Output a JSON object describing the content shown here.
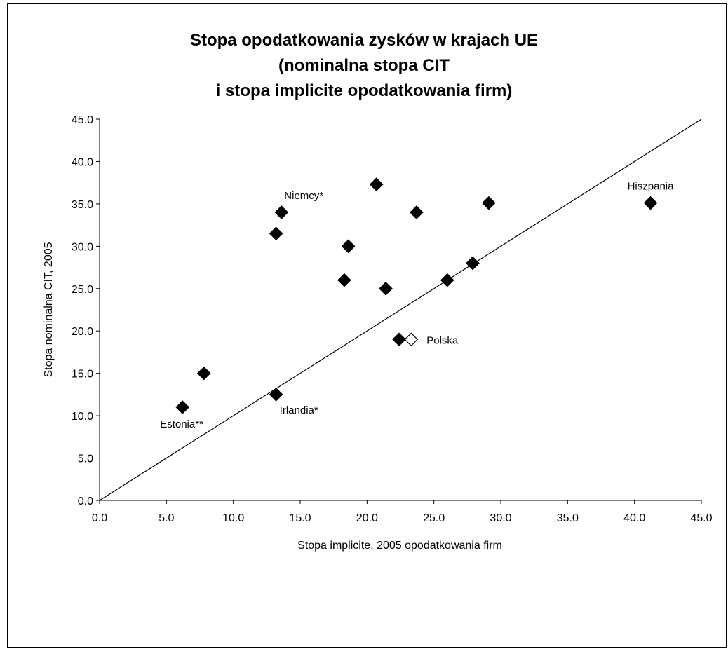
{
  "chart_data": {
    "type": "scatter",
    "title": [
      "Stopa opodatkowania zysków w krajach UE",
      "(nominalna stopa CIT",
      "i stopa implicite opodatkowania firm)"
    ],
    "xlabel": "Stopa implicite, 2005 opodatkowania firm",
    "ylabel": "Stopa nominalna CIT, 2005",
    "xlim": [
      0,
      45
    ],
    "ylim": [
      0,
      45
    ],
    "xticks": [
      "0.0",
      "5.0",
      "10.0",
      "15.0",
      "20.0",
      "25.0",
      "30.0",
      "35.0",
      "40.0",
      "45.0"
    ],
    "yticks": [
      "0.0",
      "5.0",
      "10.0",
      "15.0",
      "20.0",
      "25.0",
      "30.0",
      "35.0",
      "40.0",
      "45.0"
    ],
    "grid": false,
    "reference_line": {
      "from": [
        0,
        0
      ],
      "to": [
        45,
        45
      ]
    },
    "points": [
      {
        "x": 6.2,
        "y": 11.0,
        "label": "Estonia**",
        "label_pos": "below",
        "highlight": false
      },
      {
        "x": 7.8,
        "y": 15.0,
        "label": "",
        "highlight": false
      },
      {
        "x": 13.2,
        "y": 12.5,
        "label": "Irlandia*",
        "label_pos": "below-right",
        "highlight": false
      },
      {
        "x": 13.2,
        "y": 31.5,
        "label": "",
        "highlight": false
      },
      {
        "x": 13.6,
        "y": 34.0,
        "label": "Niemcy*",
        "label_pos": "above-right",
        "highlight": false
      },
      {
        "x": 18.3,
        "y": 26.0,
        "label": "",
        "highlight": false
      },
      {
        "x": 18.6,
        "y": 30.0,
        "label": "",
        "highlight": false
      },
      {
        "x": 20.7,
        "y": 37.3,
        "label": "",
        "highlight": false
      },
      {
        "x": 21.4,
        "y": 25.0,
        "label": "",
        "highlight": false
      },
      {
        "x": 22.4,
        "y": 19.0,
        "label": "",
        "highlight": false
      },
      {
        "x": 23.3,
        "y": 19.0,
        "label": "Polska",
        "label_pos": "right",
        "highlight": true
      },
      {
        "x": 23.7,
        "y": 34.0,
        "label": "",
        "highlight": false
      },
      {
        "x": 26.0,
        "y": 26.0,
        "label": "",
        "highlight": false
      },
      {
        "x": 27.9,
        "y": 28.0,
        "label": "",
        "highlight": false
      },
      {
        "x": 29.1,
        "y": 35.1,
        "label": "",
        "highlight": false
      },
      {
        "x": 41.2,
        "y": 35.1,
        "label": "Hiszpania",
        "label_pos": "above",
        "highlight": false
      }
    ],
    "colors": {
      "marker": "#000000",
      "highlight_marker": "#ffffff",
      "line": "#000000"
    }
  }
}
